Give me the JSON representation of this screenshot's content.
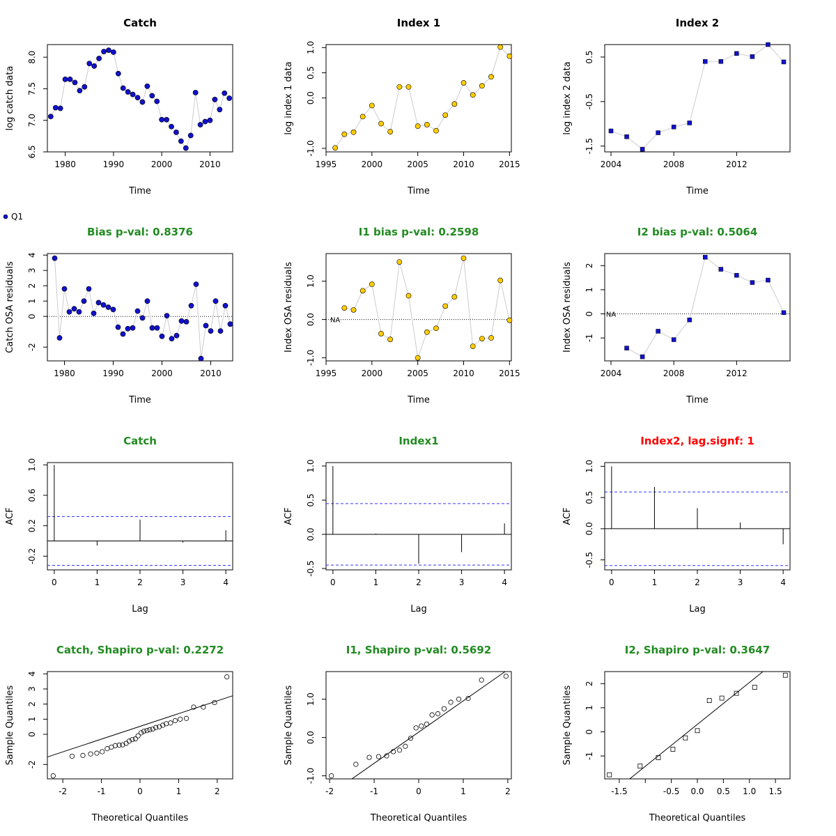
{
  "legend": {
    "label": "Q1",
    "color": "#1111cc"
  },
  "colors": {
    "catch": "#1111cc",
    "index1": "#ffcc00",
    "index2": "#1111cc",
    "sig": "#228b22",
    "warn": "#ff0000",
    "ci": "#3333ff",
    "connector": "#cccccc"
  },
  "chart_data": [
    {
      "type": "scatter",
      "title": "Catch",
      "title_color": "black",
      "xlabel": "Time",
      "ylabel": "log catch data",
      "xlim": [
        1976.3,
        2014.7
      ],
      "ylim": [
        6.5,
        8.2
      ],
      "xticks": [
        1980,
        1990,
        2000,
        2010
      ],
      "yticks": [
        {
          "v": 6.5,
          "t": "6.5"
        },
        {
          "v": 7.0,
          "t": "7.0"
        },
        {
          "v": 7.5,
          "t": "7.5"
        },
        {
          "v": 8.0,
          "t": "8.0"
        }
      ],
      "marker": "circle",
      "fill": "#1111cc",
      "lines": true,
      "x": [
        1977,
        1978,
        1979,
        1980,
        1981,
        1982,
        1983,
        1984,
        1985,
        1986,
        1987,
        1988,
        1989,
        1990,
        1991,
        1992,
        1993,
        1994,
        1995,
        1996,
        1997,
        1998,
        1999,
        2000,
        2001,
        2002,
        2003,
        2004,
        2005,
        2006,
        2007,
        2008,
        2009,
        2010,
        2011,
        2012,
        2013,
        2014
      ],
      "y": [
        7.06,
        7.2,
        7.19,
        7.65,
        7.65,
        7.6,
        7.47,
        7.53,
        7.9,
        7.86,
        7.98,
        8.09,
        8.11,
        8.08,
        7.74,
        7.51,
        7.45,
        7.41,
        7.36,
        7.29,
        7.54,
        7.39,
        7.3,
        7.01,
        7.01,
        6.9,
        6.81,
        6.67,
        6.56,
        6.76,
        7.44,
        6.93,
        6.98,
        7.0,
        7.33,
        7.17,
        7.43,
        7.35
      ]
    },
    {
      "type": "scatter",
      "title": "Index 1",
      "title_color": "black",
      "xlabel": "Time",
      "ylabel": "log index 1 data",
      "xlim": [
        1995,
        2015.2
      ],
      "ylim": [
        -1.07,
        1.06
      ],
      "xticks": [
        1995,
        2000,
        2005,
        2010,
        2015
      ],
      "yticks": [
        {
          "v": -1.0,
          "t": "-1.0"
        },
        {
          "v": 0.0,
          "t": "0.0"
        },
        {
          "v": 0.5,
          "t": "0.5"
        },
        {
          "v": 1.0,
          "t": "1.0"
        }
      ],
      "marker": "circle",
      "fill": "#ffcc00",
      "lines": true,
      "x": [
        1996,
        1997,
        1998,
        1999,
        2000,
        2001,
        2002,
        2003,
        2004,
        2005,
        2006,
        2007,
        2008,
        2009,
        2010,
        2011,
        2012,
        2013,
        2014,
        2015
      ],
      "y": [
        -0.99,
        -0.72,
        -0.68,
        -0.37,
        -0.15,
        -0.51,
        -0.67,
        0.22,
        0.22,
        -0.56,
        -0.53,
        -0.65,
        -0.34,
        -0.12,
        0.3,
        0.06,
        0.24,
        0.42,
        1.01,
        0.83
      ]
    },
    {
      "type": "scatter",
      "title": "Index 2",
      "title_color": "black",
      "xlabel": "Time",
      "ylabel": "log index 2 data",
      "xlim": [
        2003.6,
        2015.4
      ],
      "ylim": [
        -1.63,
        0.78
      ],
      "xticks": [
        2004,
        2008,
        2012
      ],
      "yticks": [
        {
          "v": -1.5,
          "t": "-1.5"
        },
        {
          "v": -0.5,
          "t": "-0.5"
        },
        {
          "v": 0.5,
          "t": "0.5"
        }
      ],
      "marker": "square",
      "fill": "#1111cc",
      "lines": true,
      "x": [
        2004,
        2005,
        2006,
        2007,
        2008,
        2009,
        2010,
        2011,
        2012,
        2013,
        2014,
        2015
      ],
      "y": [
        -1.16,
        -1.29,
        -1.57,
        -1.2,
        -1.07,
        -0.98,
        0.4,
        0.4,
        0.58,
        0.51,
        0.78,
        0.39
      ]
    },
    {
      "type": "scatter",
      "title": "Bias p-val: 0.8376",
      "title_color": "#228b22",
      "xlabel": "Time",
      "ylabel": "Catch OSA residuals",
      "xlim": [
        1976.5,
        2014.5
      ],
      "ylim": [
        -2.9,
        4.1
      ],
      "xticks": [
        1980,
        1990,
        2000,
        2010
      ],
      "yticks": [
        {
          "v": -2,
          "t": "-2"
        },
        {
          "v": 0,
          "t": "0"
        },
        {
          "v": 1,
          "t": "1"
        },
        {
          "v": 2,
          "t": "2"
        },
        {
          "v": 3,
          "t": "3"
        },
        {
          "v": 4,
          "t": "4"
        }
      ],
      "marker": "circle",
      "fill": "#1111cc",
      "lines": true,
      "hline": 0,
      "x": [
        1978,
        1979,
        1980,
        1981,
        1982,
        1983,
        1984,
        1985,
        1986,
        1987,
        1988,
        1989,
        1990,
        1991,
        1992,
        1993,
        1994,
        1995,
        1996,
        1997,
        1998,
        1999,
        2000,
        2001,
        2002,
        2003,
        2004,
        2005,
        2006,
        2007,
        2008,
        2009,
        2010,
        2011,
        2012,
        2013,
        2014
      ],
      "y": [
        3.8,
        -1.4,
        1.8,
        0.3,
        0.5,
        0.3,
        1.0,
        1.8,
        0.2,
        0.9,
        0.75,
        0.6,
        0.45,
        -0.7,
        -1.15,
        -0.8,
        -0.75,
        0.35,
        -0.1,
        1.0,
        -0.75,
        -0.75,
        -1.3,
        0.05,
        -1.45,
        -1.25,
        -0.3,
        -0.35,
        0.7,
        2.1,
        -2.75,
        -0.6,
        -0.95,
        1.0,
        -0.95,
        0.7,
        -0.5
      ]
    },
    {
      "type": "scatter",
      "title": "I1 bias p-val: 0.2598",
      "title_color": "#228b22",
      "xlabel": "Time",
      "ylabel": "Index OSA residuals",
      "xlim": [
        1995,
        2015.2
      ],
      "ylim": [
        -1.08,
        1.72
      ],
      "xticks": [
        1995,
        2000,
        2005,
        2010,
        2015
      ],
      "yticks": [
        {
          "v": -1.0,
          "t": "-1.0"
        },
        {
          "v": 0.0,
          "t": "0.0"
        },
        {
          "v": 1.0,
          "t": "1.0"
        }
      ],
      "marker": "circle",
      "fill": "#ffcc00",
      "lines": true,
      "hline": 0,
      "na_label": "NA",
      "na_x": 1996,
      "x": [
        1997,
        1998,
        1999,
        2000,
        2001,
        2002,
        2003,
        2004,
        2005,
        2006,
        2007,
        2008,
        2009,
        2010,
        2011,
        2012,
        2013,
        2014,
        2015
      ],
      "y": [
        0.3,
        0.25,
        0.75,
        0.92,
        -0.37,
        -0.52,
        1.5,
        0.62,
        -1.0,
        -0.33,
        -0.23,
        0.35,
        0.59,
        1.6,
        -0.7,
        -0.5,
        -0.48,
        1.02,
        -0.02
      ]
    },
    {
      "type": "scatter",
      "title": "I2 bias p-val: 0.5064",
      "title_color": "#228b22",
      "xlabel": "Time",
      "ylabel": "Index OSA residuals",
      "xlim": [
        2003.6,
        2015.4
      ],
      "ylim": [
        -1.95,
        2.5
      ],
      "xticks": [
        2004,
        2008,
        2012
      ],
      "yticks": [
        {
          "v": -1,
          "t": "-1"
        },
        {
          "v": 0,
          "t": "0"
        },
        {
          "v": 1,
          "t": "1"
        },
        {
          "v": 2,
          "t": "2"
        }
      ],
      "marker": "square",
      "fill": "#1111cc",
      "lines": true,
      "hline": 0,
      "na_label": "NA",
      "na_x": 2004,
      "x": [
        2005,
        2006,
        2007,
        2008,
        2009,
        2010,
        2011,
        2012,
        2013,
        2014,
        2015
      ],
      "y": [
        -1.42,
        -1.78,
        -0.72,
        -1.07,
        -0.25,
        2.35,
        1.85,
        1.6,
        1.3,
        1.4,
        0.05
      ]
    },
    {
      "type": "acf",
      "title": "Catch",
      "title_color": "#228b22",
      "xlabel": "Lag",
      "ylabel": "ACF",
      "xlim": [
        -0.16,
        4.16
      ],
      "ylim": [
        -0.38,
        1.03
      ],
      "xticks": [
        0,
        1,
        2,
        3,
        4
      ],
      "yticks": [
        {
          "v": -0.2,
          "t": "-0.2"
        },
        {
          "v": 0.2,
          "t": "0.2"
        },
        {
          "v": 0.6,
          "t": "0.6"
        },
        {
          "v": 1.0,
          "t": "1.0"
        }
      ],
      "lags": [
        0,
        1,
        2,
        3,
        4
      ],
      "acf": [
        1.0,
        -0.06,
        0.28,
        -0.02,
        0.14
      ],
      "ci": 0.32
    },
    {
      "type": "acf",
      "title": "Index1",
      "title_color": "#228b22",
      "xlabel": "Lag",
      "ylabel": "ACF",
      "xlim": [
        -0.16,
        4.16
      ],
      "ylim": [
        -0.52,
        1.05
      ],
      "xticks": [
        0,
        1,
        2,
        3,
        4
      ],
      "yticks": [
        {
          "v": -0.5,
          "t": "-0.5"
        },
        {
          "v": 0.0,
          "t": "0.0"
        },
        {
          "v": 0.5,
          "t": "0.5"
        },
        {
          "v": 1.0,
          "t": "1.0"
        }
      ],
      "lags": [
        0,
        1,
        2,
        3,
        4
      ],
      "acf": [
        1.0,
        0.01,
        -0.43,
        -0.26,
        0.16
      ],
      "ci": 0.45
    },
    {
      "type": "acf",
      "title": "Index2, lag.signf: 1",
      "title_color": "#ff0000",
      "xlabel": "Lag",
      "ylabel": "ACF",
      "xlim": [
        -0.16,
        4.16
      ],
      "ylim": [
        -0.66,
        1.06
      ],
      "xticks": [
        0,
        1,
        2,
        3,
        4
      ],
      "yticks": [
        {
          "v": -0.5,
          "t": "-0.5"
        },
        {
          "v": 0.0,
          "t": "0.0"
        },
        {
          "v": 0.5,
          "t": "0.5"
        },
        {
          "v": 1.0,
          "t": "1.0"
        }
      ],
      "lags": [
        0,
        1,
        2,
        3,
        4
      ],
      "acf": [
        1.0,
        0.67,
        0.33,
        0.1,
        -0.25
      ],
      "ci": 0.59
    },
    {
      "type": "qq",
      "title": "Catch, Shapiro p-val: 0.2272",
      "title_color": "#228b22",
      "xlabel": "Theoretical Quantiles",
      "ylabel": "Sample Quantiles",
      "xlim": [
        -2.4,
        2.4
      ],
      "ylim": [
        -2.95,
        4.15
      ],
      "xticks": [
        {
          "v": -2,
          "t": "-2"
        },
        {
          "v": -1,
          "t": "-1"
        },
        {
          "v": 0,
          "t": "0"
        },
        {
          "v": 1,
          "t": "1"
        },
        {
          "v": 2,
          "t": "2"
        }
      ],
      "yticks": [
        {
          "v": -2,
          "t": "-2"
        },
        {
          "v": 0,
          "t": "0"
        },
        {
          "v": 1,
          "t": "1"
        },
        {
          "v": 2,
          "t": "2"
        },
        {
          "v": 3,
          "t": "3"
        },
        {
          "v": 4,
          "t": "4"
        }
      ],
      "marker": "circle",
      "x": [
        -2.25,
        -1.76,
        -1.48,
        -1.28,
        -1.12,
        -0.98,
        -0.85,
        -0.74,
        -0.64,
        -0.54,
        -0.45,
        -0.36,
        -0.28,
        -0.2,
        -0.12,
        -0.05,
        0.03,
        0.1,
        0.18,
        0.25,
        0.33,
        0.41,
        0.5,
        0.59,
        0.68,
        0.79,
        0.91,
        1.04,
        1.2,
        1.39,
        1.64,
        1.93,
        2.25
      ],
      "y": [
        -2.75,
        -1.45,
        -1.4,
        -1.3,
        -1.25,
        -1.15,
        -0.95,
        -0.85,
        -0.75,
        -0.72,
        -0.7,
        -0.6,
        -0.45,
        -0.35,
        -0.3,
        -0.1,
        0.1,
        0.2,
        0.25,
        0.3,
        0.35,
        0.45,
        0.5,
        0.6,
        0.7,
        0.75,
        0.9,
        1.0,
        1.05,
        1.8,
        1.8,
        2.1,
        3.8
      ],
      "ref_line": [
        {
          "x": -2.4,
          "y": -1.5
        },
        {
          "x": 2.4,
          "y": 2.55
        }
      ]
    },
    {
      "type": "qq",
      "title": "I1, Shapiro p-val: 0.5692",
      "title_color": "#228b22",
      "xlabel": "Theoretical Quantiles",
      "ylabel": "Sample Quantiles",
      "xlim": [
        -2.08,
        2.08
      ],
      "ylim": [
        -1.08,
        1.72
      ],
      "xticks": [
        {
          "v": -2,
          "t": "-2"
        },
        {
          "v": -1,
          "t": "-1"
        },
        {
          "v": 0,
          "t": "0"
        },
        {
          "v": 1,
          "t": "1"
        },
        {
          "v": 2,
          "t": "2"
        }
      ],
      "yticks": [
        {
          "v": -1.0,
          "t": "-1.0"
        },
        {
          "v": 0.0,
          "t": "0.0"
        },
        {
          "v": 1.0,
          "t": "1.0"
        }
      ],
      "marker": "circle",
      "x": [
        -1.96,
        -1.41,
        -1.11,
        -0.9,
        -0.72,
        -0.57,
        -0.43,
        -0.3,
        -0.18,
        -0.06,
        0.06,
        0.18,
        0.3,
        0.43,
        0.57,
        0.72,
        0.9,
        1.11,
        1.41,
        1.96
      ],
      "y": [
        -1.0,
        -0.7,
        -0.52,
        -0.5,
        -0.48,
        -0.37,
        -0.33,
        -0.23,
        -0.02,
        0.25,
        0.3,
        0.35,
        0.59,
        0.62,
        0.75,
        0.92,
        1.0,
        1.02,
        1.5,
        1.6
      ],
      "ref_line": [
        {
          "x": -1.5,
          "y": -1.08
        },
        {
          "x": 1.94,
          "y": 1.72
        }
      ]
    },
    {
      "type": "qq",
      "title": "I2, Shapiro p-val: 0.3647",
      "title_color": "#228b22",
      "xlabel": "Theoretical Quantiles",
      "ylabel": "Sample Quantiles",
      "xlim": [
        -1.78,
        1.78
      ],
      "ylim": [
        -1.95,
        2.5
      ],
      "xticks": [
        {
          "v": -1.5,
          "t": "-1.5"
        },
        {
          "v": -1.0,
          "t": ""
        },
        {
          "v": -0.5,
          "t": "-0.5"
        },
        {
          "v": 0.0,
          "t": "0.0"
        },
        {
          "v": 0.5,
          "t": "0.5"
        },
        {
          "v": 1.0,
          "t": "1.0"
        },
        {
          "v": 1.5,
          "t": "1.5"
        }
      ],
      "yticks": [
        {
          "v": -1,
          "t": "-1"
        },
        {
          "v": 0,
          "t": "0"
        },
        {
          "v": 1,
          "t": "1"
        },
        {
          "v": 2,
          "t": "2"
        }
      ],
      "marker": "square",
      "x": [
        -1.69,
        -1.1,
        -0.75,
        -0.47,
        -0.23,
        0.0,
        0.23,
        0.47,
        0.75,
        1.1,
        1.69
      ],
      "y": [
        -1.78,
        -1.42,
        -1.07,
        -0.72,
        -0.25,
        0.05,
        1.3,
        1.4,
        1.6,
        1.85,
        2.35
      ],
      "ref_line": [
        {
          "x": -1.3,
          "y": -1.95
        },
        {
          "x": 1.26,
          "y": 2.5
        }
      ]
    }
  ]
}
